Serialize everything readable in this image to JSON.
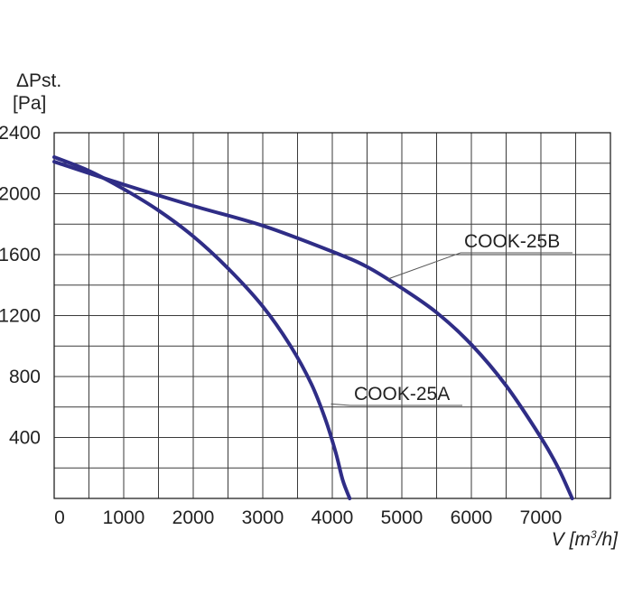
{
  "chart_data": {
    "type": "line",
    "title": "",
    "ylabel_symbol": "ΔPst.",
    "ylabel_unit": "[Pa]",
    "xlabel_prefix": "V [m",
    "xlabel_sup": "3",
    "xlabel_suffix": "/h]",
    "xlim": [
      0,
      8000
    ],
    "ylim": [
      0,
      2400
    ],
    "x_ticks": [
      "0",
      "1000",
      "2000",
      "3000",
      "4000",
      "5000",
      "6000",
      "7000"
    ],
    "y_ticks": [
      "400",
      "800",
      "1200",
      "1600",
      "2000",
      "2400"
    ],
    "grid": true,
    "series": [
      {
        "name": "COOK-25A",
        "color": "#2f2d86",
        "points": [
          [
            0,
            2240
          ],
          [
            500,
            2150
          ],
          [
            1000,
            2030
          ],
          [
            1500,
            1890
          ],
          [
            2000,
            1720
          ],
          [
            2500,
            1510
          ],
          [
            3000,
            1260
          ],
          [
            3400,
            1000
          ],
          [
            3700,
            750
          ],
          [
            3900,
            520
          ],
          [
            4050,
            300
          ],
          [
            4150,
            120
          ],
          [
            4250,
            0
          ]
        ]
      },
      {
        "name": "COOK-25B",
        "color": "#2f2d86",
        "points": [
          [
            0,
            2210
          ],
          [
            1000,
            2060
          ],
          [
            2000,
            1920
          ],
          [
            3000,
            1790
          ],
          [
            4000,
            1620
          ],
          [
            4500,
            1520
          ],
          [
            5000,
            1380
          ],
          [
            5500,
            1220
          ],
          [
            6000,
            1010
          ],
          [
            6500,
            740
          ],
          [
            7000,
            400
          ],
          [
            7250,
            200
          ],
          [
            7450,
            0
          ]
        ]
      }
    ]
  }
}
